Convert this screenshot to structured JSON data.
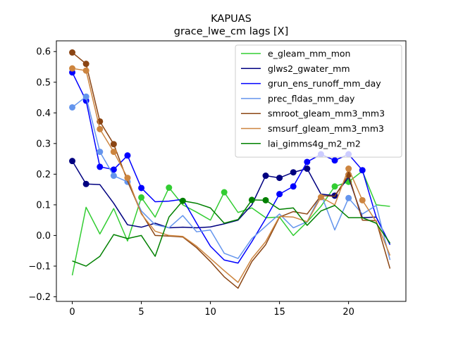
{
  "chart_data": {
    "type": "line",
    "title": "KAPUAS",
    "subtitle": "grace_lwe_cm lags [X]",
    "xlabel": "",
    "ylabel": "",
    "xlim": [
      -1.15,
      24.15
    ],
    "ylim": [
      -0.215,
      0.635
    ],
    "xticks": [
      0,
      5,
      10,
      15,
      20
    ],
    "yticks": [
      -0.2,
      -0.1,
      0.0,
      0.1,
      0.2,
      0.3,
      0.4,
      0.5,
      0.6
    ],
    "ytick_labels": [
      "−0.2",
      "−0.1",
      "0.0",
      "0.1",
      "0.2",
      "0.3",
      "0.4",
      "0.5",
      "0.6"
    ],
    "grid": false,
    "legend_position": "top-right",
    "x": [
      0,
      1,
      2,
      3,
      4,
      5,
      6,
      7,
      8,
      9,
      10,
      11,
      12,
      13,
      14,
      15,
      16,
      17,
      18,
      19,
      20,
      21,
      22,
      23
    ],
    "series": [
      {
        "name": "e_gleam_mm_mon",
        "color": "#32cd32",
        "values": [
          -0.13,
          0.092,
          0.005,
          0.088,
          -0.018,
          0.124,
          0.06,
          0.156,
          0.1,
          0.076,
          0.05,
          0.141,
          0.075,
          0.09,
          0.058,
          0.06,
          0.0,
          0.044,
          0.095,
          0.16,
          0.175,
          0.21,
          0.1,
          0.095
        ],
        "markers": [
          5,
          7,
          11,
          19,
          20
        ]
      },
      {
        "name": "glws2_gwater_mm",
        "color": "#000080",
        "values": [
          0.243,
          0.168,
          0.166,
          0.105,
          0.035,
          0.027,
          0.04,
          0.025,
          0.027,
          0.025,
          0.028,
          0.038,
          0.05,
          0.1,
          0.195,
          0.188,
          0.206,
          0.218,
          0.135,
          0.13,
          0.19,
          0.058,
          0.06,
          -0.03
        ],
        "markers": [
          0,
          1,
          14,
          15,
          16,
          17,
          19
        ]
      },
      {
        "name": "grun_ens_runoff_mm_day",
        "color": "#0000ff",
        "values": [
          0.532,
          0.44,
          0.224,
          0.215,
          0.261,
          0.155,
          0.11,
          0.112,
          0.118,
          0.04,
          -0.035,
          -0.08,
          -0.09,
          -0.02,
          0.055,
          0.135,
          0.16,
          0.24,
          0.265,
          0.245,
          0.265,
          0.213,
          0.06,
          -0.03
        ],
        "markers": [
          0,
          1,
          2,
          3,
          4,
          5,
          15,
          16,
          17,
          18,
          19,
          20,
          21
        ]
      },
      {
        "name": "prec_fldas_mm_day",
        "color": "#6495ed",
        "values": [
          0.418,
          0.453,
          0.273,
          0.195,
          0.175,
          0.08,
          0.035,
          0.025,
          0.065,
          0.012,
          0.018,
          -0.058,
          -0.075,
          -0.01,
          0.03,
          0.07,
          0.025,
          0.045,
          0.135,
          0.018,
          0.122,
          0.07,
          0.098,
          -0.08
        ],
        "markers": [
          0,
          1,
          2,
          3,
          4,
          20
        ]
      },
      {
        "name": "smroot_gleam_mm3_mm3",
        "color": "#8b4513",
        "values": [
          0.597,
          0.56,
          0.372,
          0.298,
          0.178,
          0.073,
          0.0,
          -0.002,
          -0.005,
          -0.04,
          -0.085,
          -0.135,
          -0.172,
          -0.085,
          -0.03,
          0.06,
          0.078,
          0.07,
          0.13,
          0.128,
          0.198,
          0.05,
          0.048,
          -0.108
        ],
        "markers": [
          0,
          1,
          2,
          3,
          20
        ]
      },
      {
        "name": "smsurf_gleam_mm3_mm3",
        "color": "#cd853f",
        "values": [
          0.545,
          0.538,
          0.347,
          0.273,
          0.188,
          0.07,
          0.014,
          0.0,
          -0.003,
          -0.035,
          -0.075,
          -0.115,
          -0.153,
          -0.075,
          -0.02,
          0.062,
          0.06,
          0.045,
          0.125,
          0.1,
          0.218,
          0.115,
          0.045,
          -0.065
        ],
        "markers": [
          0,
          1,
          2,
          3,
          4,
          18,
          20,
          21
        ]
      },
      {
        "name": "lai_gimms4g_m2_m2",
        "color": "#008000",
        "values": [
          -0.083,
          -0.1,
          -0.068,
          0.003,
          -0.01,
          0.0,
          -0.068,
          0.06,
          0.113,
          0.105,
          0.09,
          0.04,
          0.052,
          0.116,
          0.115,
          0.085,
          0.09,
          0.033,
          0.08,
          0.098,
          0.058,
          0.058,
          0.04,
          -0.025
        ],
        "markers": [
          8,
          13,
          14
        ]
      }
    ]
  }
}
